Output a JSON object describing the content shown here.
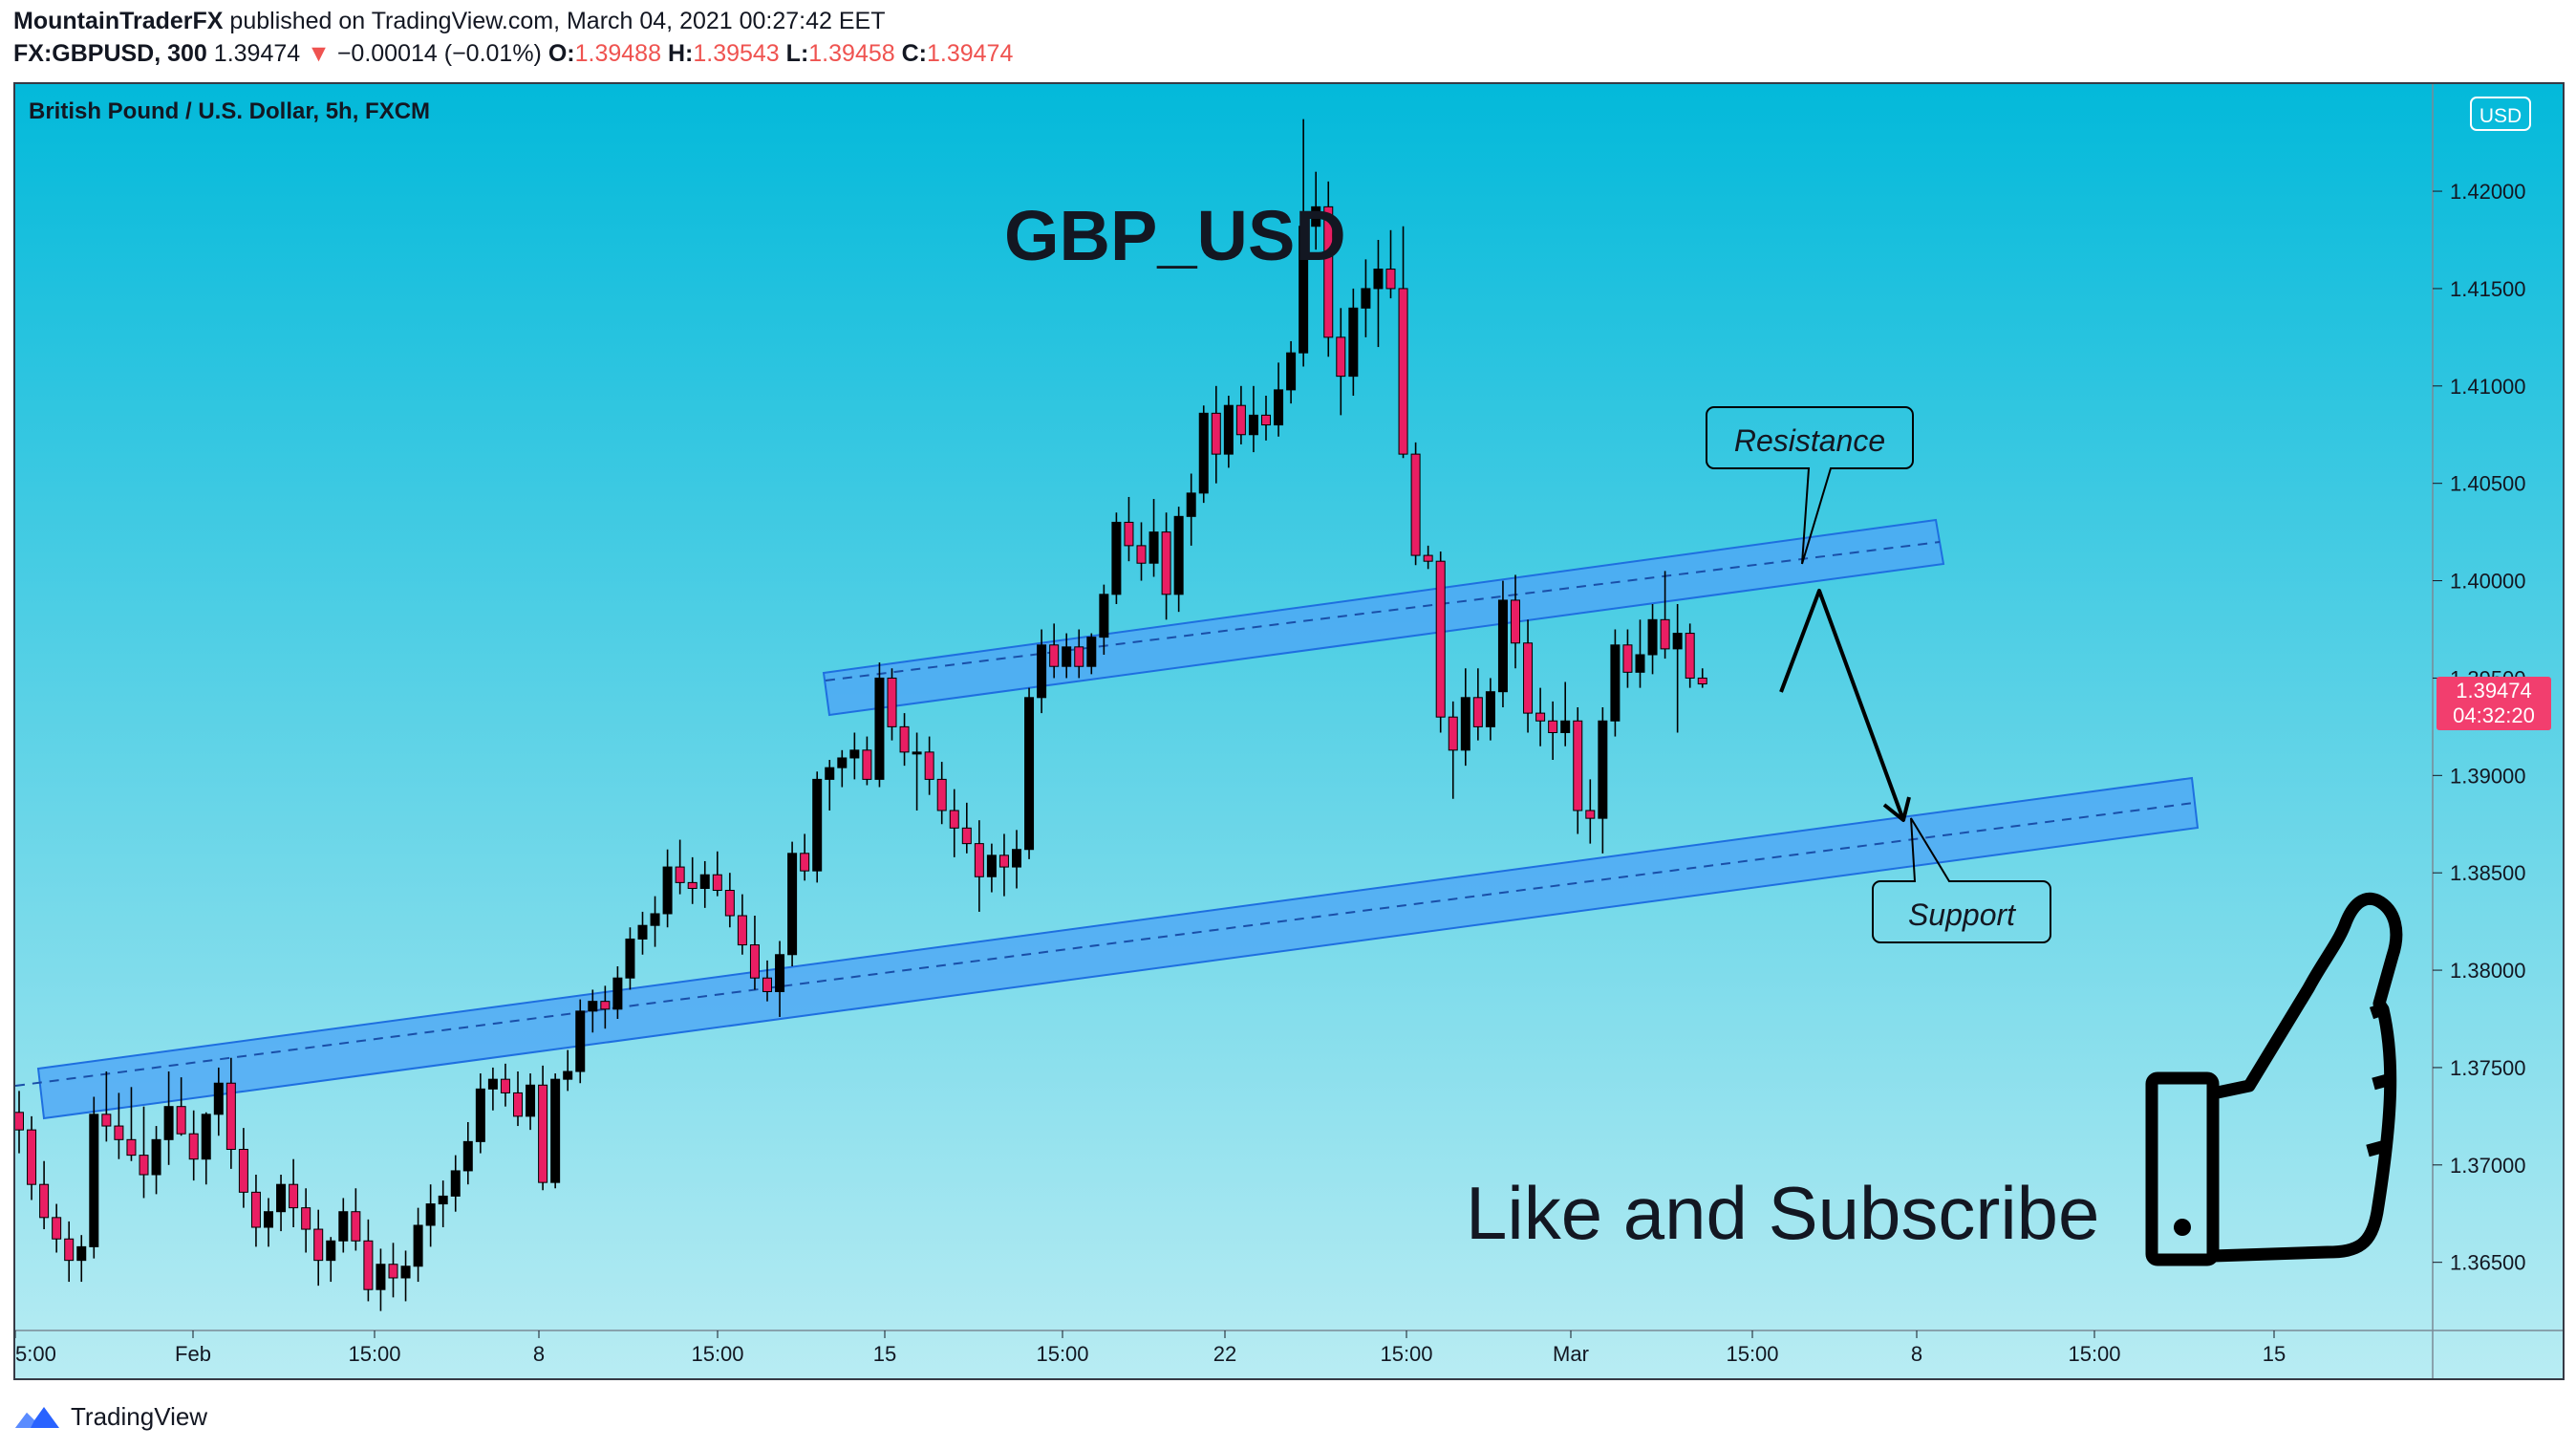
{
  "header": {
    "author": "MountainTraderFX",
    "published": "published on TradingView.com, March 04, 2021 00:27:42 EET",
    "symbol": "FX:GBPUSD, 300",
    "last": "1.39474",
    "change_arrow": "▼",
    "change": "−0.00014 (−0.01%)",
    "o_label": "O:",
    "o": "1.39488",
    "h_label": "H:",
    "h": "1.39543",
    "l_label": "L:",
    "l": "1.39458",
    "c_label": "C:",
    "c": "1.39474"
  },
  "chart_title": "British Pound / U.S. Dollar, 5h, FXCM",
  "currency_badge": "USD",
  "big_title": "GBP_USD",
  "price_tag": {
    "price": "1.39474",
    "countdown": "04:32:20"
  },
  "annotations": {
    "resistance": "Resistance",
    "support": "Support",
    "like": "Like and Subscribe"
  },
  "footer": {
    "brand": "TradingView"
  },
  "colors": {
    "bull": "#000000",
    "bear": "#e91e63",
    "channel_fill": "#4da6f5",
    "channel_border": "#1e6fe0",
    "bg_top": "#03b9da",
    "bg_bottom": "#b8ecf3",
    "price_tag": "#f23e6e"
  },
  "chart_data": {
    "type": "candlestick",
    "title": "British Pound / U.S. Dollar, 5h, FXCM",
    "ylim": [
      1.3615,
      1.4255
    ],
    "y_ticks": [
      "1.42000",
      "1.41500",
      "1.41000",
      "1.40500",
      "1.40000",
      "1.39500",
      "1.39000",
      "1.38500",
      "1.38000",
      "1.37500",
      "1.37000",
      "1.36500"
    ],
    "x_ticks": [
      "5:00",
      "Feb",
      "15:00",
      "8",
      "15:00",
      "15",
      "15:00",
      "22",
      "15:00",
      "Mar",
      "15:00",
      "8",
      "15:00",
      "15"
    ],
    "ohlc": [
      [
        1.3727,
        1.3738,
        1.3706,
        1.3718
      ],
      [
        1.3718,
        1.3725,
        1.3682,
        1.369
      ],
      [
        1.369,
        1.3702,
        1.3667,
        1.3673
      ],
      [
        1.3673,
        1.368,
        1.3655,
        1.3662
      ],
      [
        1.3662,
        1.3671,
        1.364,
        1.3651
      ],
      [
        1.3651,
        1.3664,
        1.364,
        1.3658
      ],
      [
        1.3658,
        1.3735,
        1.3652,
        1.3726
      ],
      [
        1.3726,
        1.3748,
        1.3712,
        1.372
      ],
      [
        1.372,
        1.3737,
        1.3703,
        1.3713
      ],
      [
        1.3713,
        1.374,
        1.3702,
        1.3705
      ],
      [
        1.3705,
        1.373,
        1.3683,
        1.3695
      ],
      [
        1.3695,
        1.372,
        1.3685,
        1.3713
      ],
      [
        1.3713,
        1.3748,
        1.37,
        1.373
      ],
      [
        1.373,
        1.3745,
        1.3715,
        1.3716
      ],
      [
        1.3716,
        1.3728,
        1.3692,
        1.3703
      ],
      [
        1.3703,
        1.3727,
        1.369,
        1.3726
      ],
      [
        1.3726,
        1.375,
        1.3715,
        1.3742
      ],
      [
        1.3742,
        1.3755,
        1.3698,
        1.3708
      ],
      [
        1.3708,
        1.3719,
        1.3678,
        1.3686
      ],
      [
        1.3686,
        1.3695,
        1.3658,
        1.3668
      ],
      [
        1.3668,
        1.3683,
        1.3658,
        1.3676
      ],
      [
        1.3676,
        1.3695,
        1.3666,
        1.369
      ],
      [
        1.369,
        1.3703,
        1.3668,
        1.3678
      ],
      [
        1.3678,
        1.3688,
        1.3655,
        1.3667
      ],
      [
        1.3667,
        1.3677,
        1.3638,
        1.3651
      ],
      [
        1.3651,
        1.3663,
        1.364,
        1.3661
      ],
      [
        1.3661,
        1.3683,
        1.3655,
        1.3676
      ],
      [
        1.3676,
        1.3688,
        1.3656,
        1.3661
      ],
      [
        1.3661,
        1.3672,
        1.363,
        1.3636
      ],
      [
        1.3636,
        1.3657,
        1.3625,
        1.3649
      ],
      [
        1.3649,
        1.366,
        1.3632,
        1.3642
      ],
      [
        1.3642,
        1.3656,
        1.363,
        1.3648
      ],
      [
        1.3648,
        1.3678,
        1.364,
        1.3669
      ],
      [
        1.3669,
        1.369,
        1.3658,
        1.368
      ],
      [
        1.368,
        1.3692,
        1.3668,
        1.3684
      ],
      [
        1.3684,
        1.3705,
        1.3676,
        1.3697
      ],
      [
        1.3697,
        1.3722,
        1.369,
        1.3712
      ],
      [
        1.3712,
        1.3747,
        1.3706,
        1.3739
      ],
      [
        1.3739,
        1.375,
        1.3728,
        1.3744
      ],
      [
        1.3744,
        1.3752,
        1.373,
        1.3737
      ],
      [
        1.3737,
        1.3748,
        1.372,
        1.3725
      ],
      [
        1.3725,
        1.3747,
        1.3718,
        1.3741
      ],
      [
        1.3741,
        1.3751,
        1.3687,
        1.3691
      ],
      [
        1.3691,
        1.3747,
        1.3688,
        1.3744
      ],
      [
        1.3744,
        1.3759,
        1.3738,
        1.3748
      ],
      [
        1.3748,
        1.3785,
        1.3742,
        1.3779
      ],
      [
        1.3779,
        1.379,
        1.3768,
        1.3784
      ],
      [
        1.3784,
        1.3792,
        1.377,
        1.378
      ],
      [
        1.378,
        1.3802,
        1.3775,
        1.3796
      ],
      [
        1.3796,
        1.3822,
        1.379,
        1.3816
      ],
      [
        1.3816,
        1.383,
        1.3808,
        1.3823
      ],
      [
        1.3823,
        1.3838,
        1.3812,
        1.3829
      ],
      [
        1.3829,
        1.3862,
        1.3822,
        1.3853
      ],
      [
        1.3853,
        1.3867,
        1.3839,
        1.3845
      ],
      [
        1.3845,
        1.3858,
        1.3834,
        1.3842
      ],
      [
        1.3842,
        1.3856,
        1.3832,
        1.3849
      ],
      [
        1.3849,
        1.3861,
        1.3838,
        1.3841
      ],
      [
        1.3841,
        1.385,
        1.3822,
        1.3828
      ],
      [
        1.3828,
        1.3839,
        1.3808,
        1.3813
      ],
      [
        1.3813,
        1.3828,
        1.379,
        1.3796
      ],
      [
        1.3796,
        1.3805,
        1.3784,
        1.3789
      ],
      [
        1.3789,
        1.3815,
        1.3776,
        1.3808
      ],
      [
        1.3808,
        1.3866,
        1.3802,
        1.386
      ],
      [
        1.386,
        1.387,
        1.3846,
        1.3851
      ],
      [
        1.3851,
        1.3902,
        1.3845,
        1.3898
      ],
      [
        1.3898,
        1.3908,
        1.3882,
        1.3904
      ],
      [
        1.3904,
        1.3913,
        1.3894,
        1.3909
      ],
      [
        1.3909,
        1.3922,
        1.3898,
        1.3913
      ],
      [
        1.3913,
        1.392,
        1.3895,
        1.3898
      ],
      [
        1.3898,
        1.3958,
        1.3894,
        1.395
      ],
      [
        1.395,
        1.3955,
        1.3918,
        1.3925
      ],
      [
        1.3925,
        1.3932,
        1.3905,
        1.3912
      ],
      [
        1.3912,
        1.3922,
        1.3882,
        1.3912
      ],
      [
        1.3912,
        1.392,
        1.389,
        1.3898
      ],
      [
        1.3898,
        1.3907,
        1.3875,
        1.3882
      ],
      [
        1.3882,
        1.3893,
        1.3858,
        1.3873
      ],
      [
        1.3873,
        1.3886,
        1.386,
        1.3865
      ],
      [
        1.3865,
        1.3877,
        1.383,
        1.3848
      ],
      [
        1.3848,
        1.3865,
        1.384,
        1.3859
      ],
      [
        1.3859,
        1.387,
        1.3838,
        1.3853
      ],
      [
        1.3853,
        1.3872,
        1.3842,
        1.3862
      ],
      [
        1.3862,
        1.3945,
        1.3857,
        1.394
      ],
      [
        1.394,
        1.3975,
        1.3932,
        1.3967
      ],
      [
        1.3967,
        1.3978,
        1.395,
        1.3956
      ],
      [
        1.3956,
        1.3973,
        1.395,
        1.3966
      ],
      [
        1.3966,
        1.3975,
        1.395,
        1.3956
      ],
      [
        1.3956,
        1.3973,
        1.3952,
        1.3971
      ],
      [
        1.3971,
        1.3998,
        1.3962,
        1.3993
      ],
      [
        1.3993,
        1.4035,
        1.3988,
        1.403
      ],
      [
        1.403,
        1.4043,
        1.401,
        1.4018
      ],
      [
        1.4018,
        1.403,
        1.4,
        1.4009
      ],
      [
        1.4009,
        1.4042,
        1.4002,
        1.4025
      ],
      [
        1.4025,
        1.4035,
        1.398,
        1.3993
      ],
      [
        1.3993,
        1.4038,
        1.3984,
        1.4033
      ],
      [
        1.4033,
        1.4055,
        1.4018,
        1.4045
      ],
      [
        1.4045,
        1.409,
        1.404,
        1.4086
      ],
      [
        1.4086,
        1.41,
        1.405,
        1.4065
      ],
      [
        1.4065,
        1.4095,
        1.4058,
        1.409
      ],
      [
        1.409,
        1.41,
        1.407,
        1.4075
      ],
      [
        1.4075,
        1.41,
        1.4066,
        1.4085
      ],
      [
        1.4085,
        1.4095,
        1.4072,
        1.408
      ],
      [
        1.408,
        1.4112,
        1.4074,
        1.4098
      ],
      [
        1.4098,
        1.4123,
        1.4091,
        1.4117
      ],
      [
        1.4117,
        1.4237,
        1.411,
        1.4182
      ],
      [
        1.4182,
        1.421,
        1.417,
        1.4192
      ],
      [
        1.4192,
        1.4205,
        1.4115,
        1.4125
      ],
      [
        1.4125,
        1.414,
        1.4085,
        1.4105
      ],
      [
        1.4105,
        1.415,
        1.4095,
        1.414
      ],
      [
        1.414,
        1.4165,
        1.4125,
        1.415
      ],
      [
        1.415,
        1.4175,
        1.412,
        1.416
      ],
      [
        1.416,
        1.418,
        1.4145,
        1.415
      ],
      [
        1.415,
        1.4182,
        1.4063,
        1.4065
      ],
      [
        1.4065,
        1.4071,
        1.4008,
        1.4013
      ],
      [
        1.4013,
        1.4018,
        1.4006,
        1.401
      ],
      [
        1.401,
        1.4015,
        1.3922,
        1.393
      ],
      [
        1.393,
        1.3938,
        1.3888,
        1.3913
      ],
      [
        1.3913,
        1.3955,
        1.3905,
        1.394
      ],
      [
        1.394,
        1.3955,
        1.3918,
        1.3925
      ],
      [
        1.3925,
        1.395,
        1.3918,
        1.3943
      ],
      [
        1.3943,
        1.4,
        1.3935,
        1.399
      ],
      [
        1.399,
        1.4003,
        1.3955,
        1.3968
      ],
      [
        1.3968,
        1.398,
        1.3922,
        1.3932
      ],
      [
        1.3932,
        1.3945,
        1.3915,
        1.3928
      ],
      [
        1.3928,
        1.3938,
        1.3908,
        1.3922
      ],
      [
        1.3922,
        1.3948,
        1.3915,
        1.3928
      ],
      [
        1.3928,
        1.3935,
        1.387,
        1.3882
      ],
      [
        1.3882,
        1.3898,
        1.3865,
        1.3878
      ],
      [
        1.3878,
        1.3935,
        1.386,
        1.3928
      ],
      [
        1.3928,
        1.3975,
        1.392,
        1.3967
      ],
      [
        1.3967,
        1.3975,
        1.3945,
        1.3953
      ],
      [
        1.3953,
        1.398,
        1.3945,
        1.3962
      ],
      [
        1.3962,
        1.3988,
        1.3952,
        1.398
      ],
      [
        1.398,
        1.4005,
        1.396,
        1.3965
      ],
      [
        1.3965,
        1.3988,
        1.3922,
        1.3973
      ],
      [
        1.3973,
        1.3978,
        1.3945,
        1.395
      ],
      [
        1.395,
        1.3955,
        1.3945,
        1.3947
      ]
    ]
  }
}
